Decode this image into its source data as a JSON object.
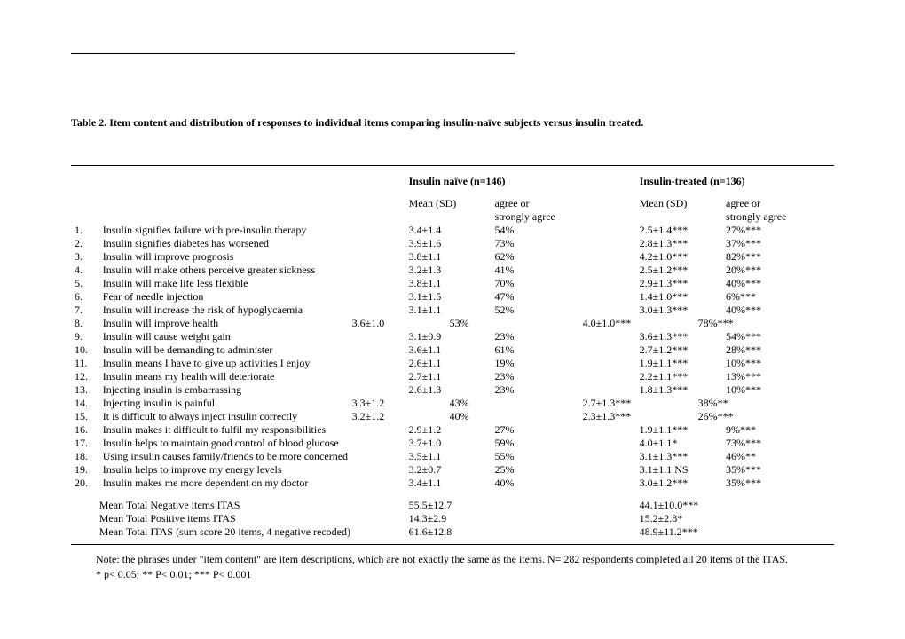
{
  "title": "Table 2. Item content and distribution of responses to individual items comparing  insulin-naïve subjects versus insulin treated.",
  "group1": "Insulin naïve  (n=146)",
  "group2": "Insulin-treated (n=136)",
  "col_mean": "Mean (SD)",
  "col_agree_l1": "agree or",
  "col_agree_l2": "strongly agree",
  "rows": [
    {
      "n": "1.",
      "item": "Insulin signifies failure with pre-insulin therapy",
      "m1": "3.4±1.4",
      "a1": "54%",
      "m2": "2.5±1.4***",
      "a2": "27%***"
    },
    {
      "n": "2.",
      "item": "Insulin signifies diabetes has worsened",
      "m1": "3.9±1.6",
      "a1": "73%",
      "m2": "2.8±1.3***",
      "a2": "37%***"
    },
    {
      "n": "3.",
      "item": "Insulin will improve prognosis",
      "m1": "3.8±1.1",
      "a1": "62%",
      "m2": "4.2±1.0***",
      "a2": "82%***"
    },
    {
      "n": "4.",
      "item": "Insulin will make others perceive greater sickness",
      "m1": "3.2±1.3",
      "a1": "41%",
      "m2": "2.5±1.2***",
      "a2": "20%***"
    },
    {
      "n": "5.",
      "item": "Insulin will make life less flexible",
      "m1": "3.8±1.1",
      "a1": "70%",
      "m2": "2.9±1.3***",
      "a2": "40%***"
    },
    {
      "n": "6.",
      "item": "Fear of needle injection",
      "m1": "3.1±1.5",
      "a1": "47%",
      "m2": "1.4±1.0***",
      "a2": "6%***"
    },
    {
      "n": "7.",
      "item": "Insulin will increase the risk of hypoglycaemia",
      "m1": "3.1±1.1",
      "a1": "52%",
      "m2": "3.0±1.3***",
      "a2": "40%***"
    },
    {
      "n": "8.",
      "item": "Insulin will improve health",
      "m1": "3.6±1.0",
      "a1": "53%",
      "m2": "4.0±1.0***",
      "a2": "78%***",
      "shift": true
    },
    {
      "n": "9.",
      "item": "Insulin will cause weight gain",
      "m1": "3.1±0.9",
      "a1": "23%",
      "m2": "3.6±1.3***",
      "a2": "54%***"
    },
    {
      "n": "10.",
      "item": "Insulin will be demanding to administer",
      "m1": "3.6±1.1",
      "a1": "61%",
      "m2": "2.7±1.2***",
      "a2": "28%***"
    },
    {
      "n": "11.",
      "item": "Insulin means I have to give up activities I enjoy",
      "m1": "2.6±1.1",
      "a1": "19%",
      "m2": "1.9±1.1***",
      "a2": "10%***"
    },
    {
      "n": "12.",
      "item": "Insulin means my health will deteriorate",
      "m1": "2.7±1.1",
      "a1": "23%",
      "m2": "2.2±1.1***",
      "a2": "13%***"
    },
    {
      "n": "13.",
      "item": "Injecting insulin is embarrassing",
      "m1": "2.6±1.3",
      "a1": "23%",
      "m2": "1.8±1.3***",
      "a2": "10%***"
    },
    {
      "n": "14.",
      "item": "Injecting insulin is painful.",
      "m1": "3.3±1.2",
      "a1": "43%",
      "m2": "2.7±1.3***",
      "a2": "38%**",
      "shift": true
    },
    {
      "n": "15.",
      "item": "It is difficult to always inject insulin correctly",
      "m1": "3.2±1.2",
      "a1": "40%",
      "m2": "2.3±1.3***",
      "a2": "26%***",
      "shift": true
    },
    {
      "n": "16.",
      "item": "Insulin makes it difficult to fulfil my responsibilities",
      "m1": "2.9±1.2",
      "a1": "27%",
      "m2": "1.9±1.1***",
      "a2": "9%***"
    },
    {
      "n": "17.",
      "item": "Insulin helps to maintain good control of blood glucose",
      "m1": "3.7±1.0",
      "a1": "59%",
      "m2": "4.0±1.1*",
      "a2": "73%***"
    },
    {
      "n": "18.",
      "item": "Using insulin causes family/friends to be more concerned",
      "m1": "3.5±1.1",
      "a1": "55%",
      "m2": "3.1±1.3***",
      "a2": "46%**"
    },
    {
      "n": "19.",
      "item": "Insulin helps to improve my energy levels",
      "m1": "3.2±0.7",
      "a1": "25%",
      "m2": "3.1±1.1 NS",
      "a2": "35%***"
    },
    {
      "n": "20.",
      "item": "Insulin makes me more dependent on my doctor",
      "m1": "3.4±1.1",
      "a1": "40%",
      "m2": "3.0±1.2***",
      "a2": "35%***"
    }
  ],
  "summary": [
    {
      "label": "Mean Total Negative items ITAS",
      "m1": "55.5±12.7",
      "m2": "44.1±10.0***"
    },
    {
      "label": "Mean Total Positive items ITAS",
      "m1": "14.3±2.9",
      "m2": "15.2±2.8*"
    },
    {
      "label": "Mean Total ITAS (sum score 20 items, 4 negative recoded)",
      "m1": "61.6±12.8",
      "m2": "48.9±11.2***"
    }
  ],
  "note1": "Note: the phrases under \"item content\" are item descriptions, which are not exactly the same as the items. N= 282 respondents completed all 20 items of the ITAS.",
  "note2": "* p< 0.05; ** P< 0.01; *** P< 0.001"
}
